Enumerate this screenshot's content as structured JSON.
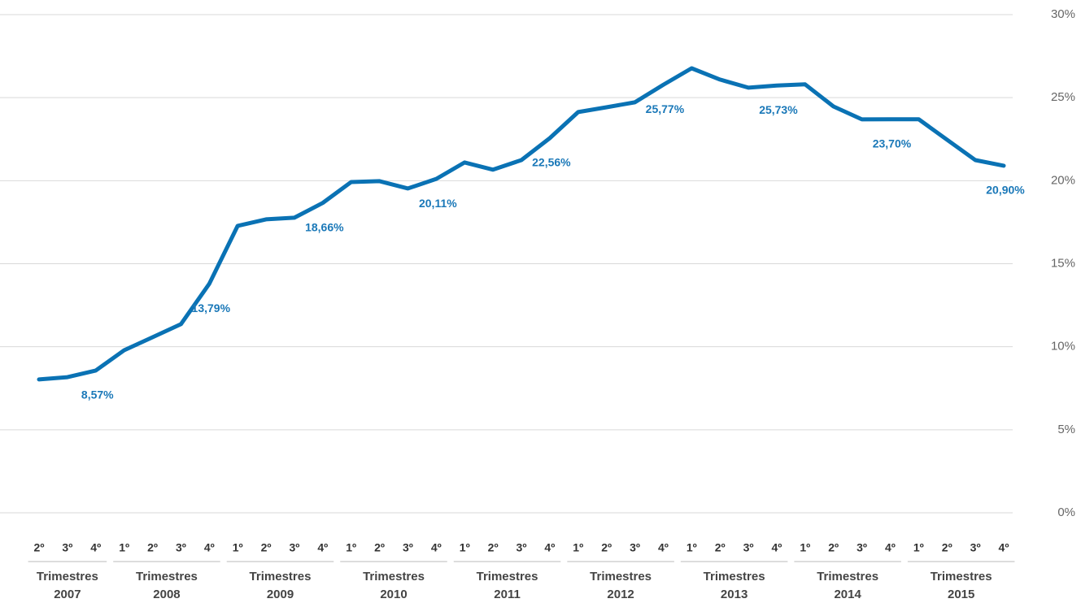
{
  "chart_data": {
    "type": "line",
    "categories": [
      "2º",
      "3º",
      "4º",
      "1º",
      "2º",
      "3º",
      "4º",
      "1º",
      "2º",
      "3º",
      "4º",
      "1º",
      "2º",
      "3º",
      "4º",
      "1º",
      "2º",
      "3º",
      "4º",
      "1º",
      "2º",
      "3º",
      "4º",
      "1º",
      "2º",
      "3º",
      "4º",
      "1º",
      "2º",
      "3º",
      "4º",
      "1º",
      "2º",
      "3º",
      "4º"
    ],
    "groups": [
      {
        "label": "Trimestres",
        "year": "2007"
      },
      {
        "label": "Trimestres",
        "year": "2008"
      },
      {
        "label": "Trimestres",
        "year": "2009"
      },
      {
        "label": "Trimestres",
        "year": "2010"
      },
      {
        "label": "Trimestres",
        "year": "2011"
      },
      {
        "label": "Trimestres",
        "year": "2012"
      },
      {
        "label": "Trimestres",
        "year": "2013"
      },
      {
        "label": "Trimestres",
        "year": "2014"
      },
      {
        "label": "Trimestres",
        "year": "2015"
      }
    ],
    "series": [
      {
        "color": "#0a72b4",
        "values": [
          8.03,
          8.17,
          8.57,
          9.79,
          10.57,
          11.36,
          13.79,
          17.28,
          17.67,
          17.77,
          18.66,
          19.92,
          19.97,
          19.53,
          20.11,
          21.1,
          20.66,
          21.24,
          22.56,
          24.13,
          24.42,
          24.72,
          25.77,
          26.77,
          26.09,
          25.6,
          25.73,
          25.8,
          24.47,
          23.69,
          23.7,
          23.7,
          22.47,
          21.24,
          20.9
        ],
        "value_labels": [
          null,
          null,
          "8,57%",
          null,
          null,
          null,
          "13,79%",
          null,
          null,
          null,
          "18,66%",
          null,
          null,
          null,
          "20,11%",
          null,
          null,
          null,
          "22,56%",
          null,
          null,
          null,
          "25,77%",
          null,
          null,
          null,
          "25,73%",
          null,
          null,
          null,
          "23,70%",
          null,
          null,
          null,
          "20,90%"
        ]
      }
    ],
    "ylim": [
      0,
      30
    ],
    "yticks": [
      {
        "value": 0,
        "label": "0%"
      },
      {
        "value": 5,
        "label": "5%"
      },
      {
        "value": 10,
        "label": "10%"
      },
      {
        "value": 15,
        "label": "15%"
      },
      {
        "value": 20,
        "label": "20%"
      },
      {
        "value": 25,
        "label": "25%"
      },
      {
        "value": 30,
        "label": "30%"
      }
    ],
    "grid": true
  }
}
